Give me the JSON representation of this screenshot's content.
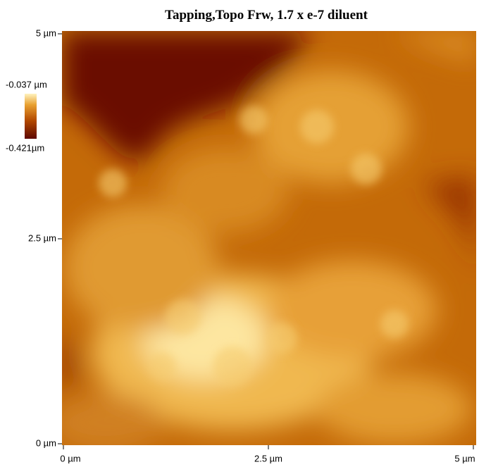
{
  "title": "Tapping,Topo Frw, 1.7 x e-7 diluent",
  "y_axis": {
    "ticks": [
      "5 µm",
      "2.5 µm",
      "0 µm"
    ]
  },
  "x_axis": {
    "ticks": [
      "0 µm",
      "2.5 µm",
      "5 µm"
    ]
  },
  "colorbar": {
    "max_label": "-0.037 µm",
    "min_label": "-0.421µm"
  }
}
